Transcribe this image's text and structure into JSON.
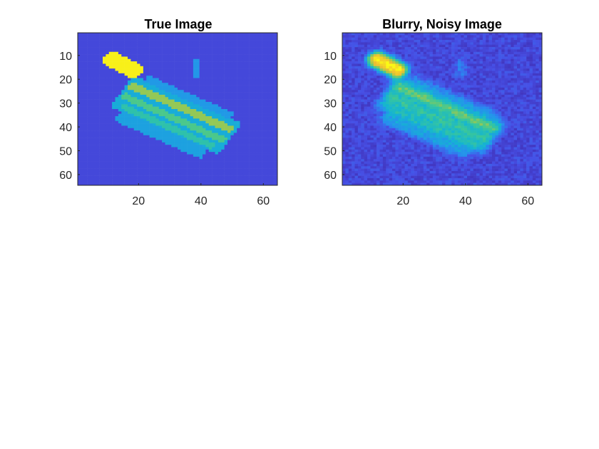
{
  "chart_data": [
    {
      "type": "heatmap",
      "title": "True Image",
      "xlim": [
        0.5,
        64.5
      ],
      "ylim": [
        0.5,
        64.5
      ],
      "y_direction": "reversed",
      "x_ticks": [
        20,
        40,
        60
      ],
      "y_ticks": [
        10,
        20,
        30,
        40,
        50,
        60
      ],
      "x_tick_labels": [
        "20",
        "40",
        "60"
      ],
      "y_tick_labels": [
        "10",
        "20",
        "30",
        "40",
        "50",
        "60"
      ],
      "colormap": "parula",
      "value_range": [
        0,
        1
      ],
      "noise": false,
      "grid": false,
      "background_value": 0.12
    },
    {
      "type": "heatmap",
      "title": "Blurry, Noisy Image",
      "xlim": [
        0.5,
        64.5
      ],
      "ylim": [
        0.5,
        64.5
      ],
      "y_direction": "reversed",
      "x_ticks": [
        20,
        40,
        60
      ],
      "y_ticks": [
        10,
        20,
        30,
        40,
        50,
        60
      ],
      "x_tick_labels": [
        "20",
        "40",
        "60"
      ],
      "y_tick_labels": [
        "10",
        "20",
        "30",
        "40",
        "50",
        "60"
      ],
      "colormap": "parula",
      "value_range": [
        0,
        1
      ],
      "noise": true,
      "grid": false,
      "background_value": 0.12
    }
  ],
  "colors": {
    "axis": "#262626",
    "background": "#3e26a8",
    "figure": "#ffffff"
  }
}
